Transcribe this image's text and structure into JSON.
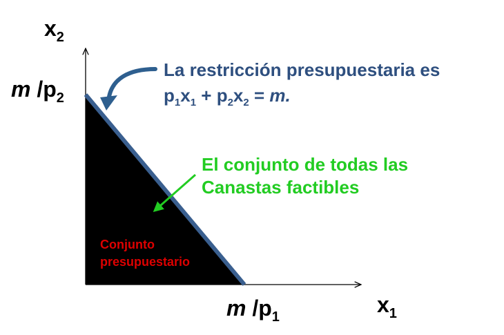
{
  "axes": {
    "y_label": {
      "main": "x",
      "sub": "2"
    },
    "x_label": {
      "main": "x",
      "sub": "1"
    },
    "y_intercept": {
      "var": "m",
      "sep": " /p",
      "sub": "2"
    },
    "x_intercept": {
      "var": "m",
      "sep": " /p",
      "sub": "1"
    }
  },
  "annotations": {
    "constraint_line1": "La restricción presupuestaria es",
    "constraint_line2": {
      "p1": "p",
      "s1": "1",
      "x1": "x",
      "t1": "1",
      "plus": " + ",
      "p2": "p",
      "s2": "2",
      "x2": "x",
      "t2": "2",
      "eq": " = ",
      "m": "m."
    },
    "feasible_line1": "El conjunto de todas las",
    "feasible_line2": "Canastas factibles",
    "region_line1": "Conjunto",
    "region_line2": "presupuestario"
  },
  "colors": {
    "budget_line": "#3a5f8f",
    "constraint_text": "#2e4f7f",
    "feasible_text": "#22cc22",
    "region_text": "#dd0000",
    "region_fill": "#000000",
    "axis": "#000000"
  }
}
